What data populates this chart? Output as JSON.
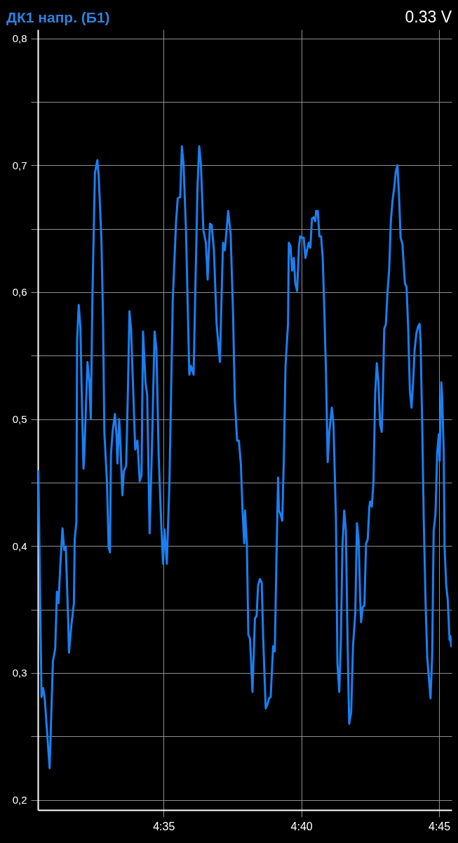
{
  "chart_data": {
    "type": "line",
    "title": "ДК1 напр. (Б1)",
    "annotations": [
      "0.33 V"
    ],
    "x": [
      4.5076,
      4.5095,
      4.5105,
      4.5115,
      4.5144,
      4.5164,
      4.5178,
      4.5188,
      4.5198,
      4.5208,
      4.5222,
      4.5232,
      4.5242,
      4.5257,
      4.5261,
      4.5276,
      4.5291,
      4.5296,
      4.5306,
      4.531,
      4.532,
      4.533,
      4.534,
      4.5349,
      4.5354,
      4.5373,
      4.5384,
      4.5393,
      4.5403,
      4.5418,
      4.5433,
      4.5441,
      4.5457,
      4.5467,
      4.5475,
      4.5491,
      4.5501,
      4.5509,
      4.5515,
      4.5525,
      4.5539,
      4.5549,
      4.5554,
      4.5565,
      4.5573,
      4.5584,
      4.5593,
      4.5607,
      4.5618,
      4.5627,
      4.5637,
      4.5652,
      4.5662,
      4.5675,
      4.5689,
      4.57,
      4.5709,
      4.5724,
      4.5734,
      4.5749,
      4.5764,
      4.5779,
      4.579,
      4.5804,
      4.5819,
      4.583,
      4.5839,
      4.5853,
      4.5869,
      4.5889,
      4.5909,
      4.5919,
      4.5934,
      4.5944,
      4.5954,
      4.5969,
      4.5989,
      4.5999,
      4.6015,
      4.6023,
      4.6039,
      4.6049,
      4.6059,
      4.6074,
      4.6089,
      4.61,
      4.6114,
      4.6124,
      4.6138,
      4.6154,
      4.6174,
      4.6185,
      4.6193,
      4.6204,
      4.6224,
      4.6239,
      4.6254,
      4.6264,
      4.6278,
      4.6289,
      4.6301,
      4.6311,
      4.6321,
      4.6326,
      4.6337,
      4.6346,
      4.6356,
      4.6371,
      4.6386,
      4.6396,
      4.6405,
      4.6416,
      4.6427,
      4.6436,
      4.6451,
      4.6461,
      4.6471,
      4.6481,
      4.6496,
      4.6506,
      4.6516,
      4.6526,
      4.6531,
      4.6541,
      4.6551,
      4.6561,
      4.6571,
      4.6586,
      4.6591,
      4.6601,
      4.6611,
      4.6621,
      4.663,
      4.6641,
      4.6652,
      4.666,
      4.6671,
      4.6681,
      4.6691,
      4.6701,
      4.6711,
      4.6721,
      4.6731,
      4.6741,
      4.6751,
      4.6756,
      4.6766,
      4.6776,
      4.6786,
      4.6796,
      4.6806,
      4.6816,
      4.6826,
      4.6836,
      4.6851,
      4.6861,
      4.6876,
      4.6885,
      4.6896,
      4.6906,
      4.6915,
      4.6926,
      4.6936,
      4.6946,
      4.6956,
      4.6968,
      4.6979,
      4.6993,
      4.7003,
      4.7013,
      4.7023,
      4.7028,
      4.7038,
      4.7048,
      4.7058,
      4.7068,
      4.7078,
      4.7083,
      4.7093,
      4.7103,
      4.7113,
      4.7123,
      4.7133,
      4.7143,
      4.7153,
      4.7163,
      4.7168,
      4.7178,
      4.7188,
      4.7198,
      4.7208,
      4.7218,
      4.7228,
      4.7238,
      4.7248,
      4.7258,
      4.7267,
      4.7278,
      4.7293,
      4.7303,
      4.7313,
      4.7323,
      4.7333,
      4.7343,
      4.7352,
      4.7363,
      4.7373,
      4.7382,
      4.7388,
      4.7398,
      4.7407,
      4.7418,
      4.7428,
      4.7437,
      4.7448,
      4.7458,
      4.7467,
      4.7478,
      4.7488,
      4.7498,
      4.7503,
      4.7513,
      4.7518,
      4.7528,
      4.7533,
      4.7543,
      4.7552,
      4.7563,
      4.7568,
      4.7573
    ],
    "series": [
      {
        "color": "#1a7ff0",
        "values": [
          0.459,
          0.281,
          0.288,
          0.279,
          0.225,
          0.309,
          0.319,
          0.364,
          0.355,
          0.383,
          0.414,
          0.397,
          0.399,
          0.338,
          0.316,
          0.338,
          0.355,
          0.406,
          0.419,
          0.561,
          0.59,
          0.573,
          0.51,
          0.461,
          0.472,
          0.545,
          0.53,
          0.5,
          0.596,
          0.694,
          0.704,
          0.691,
          0.643,
          0.58,
          0.49,
          0.45,
          0.399,
          0.395,
          0.472,
          0.49,
          0.504,
          0.487,
          0.465,
          0.5,
          0.478,
          0.44,
          0.459,
          0.463,
          0.525,
          0.585,
          0.57,
          0.513,
          0.476,
          0.483,
          0.451,
          0.456,
          0.569,
          0.529,
          0.519,
          0.41,
          0.483,
          0.569,
          0.555,
          0.47,
          0.418,
          0.386,
          0.413,
          0.386,
          0.451,
          0.594,
          0.656,
          0.674,
          0.675,
          0.715,
          0.701,
          0.648,
          0.535,
          0.542,
          0.535,
          0.587,
          0.685,
          0.715,
          0.701,
          0.649,
          0.639,
          0.61,
          0.654,
          0.653,
          0.633,
          0.575,
          0.545,
          0.601,
          0.639,
          0.633,
          0.664,
          0.646,
          0.581,
          0.516,
          0.483,
          0.483,
          0.464,
          0.428,
          0.402,
          0.428,
          0.402,
          0.33,
          0.327,
          0.285,
          0.343,
          0.345,
          0.369,
          0.374,
          0.371,
          0.327,
          0.272,
          0.275,
          0.28,
          0.281,
          0.321,
          0.317,
          0.389,
          0.454,
          0.428,
          0.425,
          0.42,
          0.47,
          0.542,
          0.575,
          0.639,
          0.636,
          0.617,
          0.627,
          0.607,
          0.601,
          0.636,
          0.644,
          0.643,
          0.643,
          0.627,
          0.633,
          0.639,
          0.635,
          0.658,
          0.659,
          0.656,
          0.664,
          0.664,
          0.644,
          0.644,
          0.627,
          0.584,
          0.535,
          0.466,
          0.49,
          0.509,
          0.496,
          0.421,
          0.307,
          0.285,
          0.327,
          0.399,
          0.428,
          0.412,
          0.327,
          0.26,
          0.269,
          0.321,
          0.347,
          0.418,
          0.405,
          0.356,
          0.34,
          0.352,
          0.353,
          0.402,
          0.405,
          0.431,
          0.435,
          0.431,
          0.451,
          0.519,
          0.544,
          0.529,
          0.496,
          0.49,
          0.539,
          0.571,
          0.575,
          0.601,
          0.618,
          0.656,
          0.672,
          0.682,
          0.695,
          0.7,
          0.675,
          0.643,
          0.638,
          0.607,
          0.604,
          0.571,
          0.523,
          0.509,
          0.53,
          0.555,
          0.568,
          0.573,
          0.575,
          0.561,
          0.493,
          0.421,
          0.356,
          0.312,
          0.298,
          0.28,
          0.314,
          0.412,
          0.425,
          0.473,
          0.488,
          0.467,
          0.529,
          0.519,
          0.473,
          0.399,
          0.369,
          0.358,
          0.326,
          0.329,
          0.321
        ]
      }
    ],
    "xlim": [
      4.5073,
      4.7576
    ],
    "xticks": [
      {
        "value": 4.58333,
        "label": "4:35"
      },
      {
        "value": 4.66667,
        "label": "4:40"
      },
      {
        "value": 4.75,
        "label": "4:45"
      }
    ],
    "ylim": [
      0.192,
      0.807
    ],
    "yticks": [
      {
        "value": 0.2,
        "label": "0,2"
      },
      {
        "value": 0.25,
        "label": null
      },
      {
        "value": 0.3,
        "label": "0,3"
      },
      {
        "value": 0.35,
        "label": null
      },
      {
        "value": 0.4,
        "label": "0,4"
      },
      {
        "value": 0.45,
        "label": null
      },
      {
        "value": 0.5,
        "label": "0,5"
      },
      {
        "value": 0.55,
        "label": null
      },
      {
        "value": 0.6,
        "label": "0,6"
      },
      {
        "value": 0.65,
        "label": null
      },
      {
        "value": 0.7,
        "label": "0,7"
      },
      {
        "value": 0.75,
        "label": null
      },
      {
        "value": 0.8,
        "label": "0,8"
      }
    ],
    "grid": true
  }
}
